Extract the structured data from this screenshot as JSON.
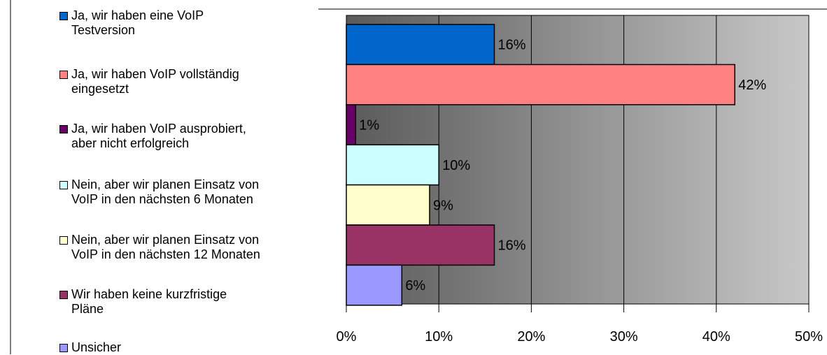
{
  "chart_data": {
    "type": "bar",
    "orientation": "horizontal",
    "categories": [
      "Ja, wir haben eine VoIP Testversion",
      "Ja, wir haben VoIP vollständig eingesetzt",
      "Ja, wir haben VoIP ausprobiert, aber nicht erfolgreich",
      "Nein, aber wir planen Einsatz von VoIP in den nächsten 6 Monaten",
      "Nein, aber wir planen Einsatz von VoIP in den nächsten 12 Monaten",
      "Wir haben keine kurzfristige Pläne",
      "Unsicher"
    ],
    "values": [
      16,
      42,
      1,
      10,
      9,
      16,
      6
    ],
    "value_labels": [
      "16%",
      "42%",
      "1%",
      "10%",
      "9%",
      "16%",
      "6%"
    ],
    "colors": [
      "#0066cc",
      "#ff8080",
      "#660066",
      "#ccffff",
      "#ffffcc",
      "#993366",
      "#9999ff"
    ],
    "xlim": [
      0,
      50
    ],
    "xticks": [
      {
        "value": 0,
        "label": "0%"
      },
      {
        "value": 10,
        "label": "10%"
      },
      {
        "value": 20,
        "label": "20%"
      },
      {
        "value": 30,
        "label": "30%"
      },
      {
        "value": 40,
        "label": "40%"
      },
      {
        "value": 50,
        "label": "50%"
      }
    ],
    "grid": true
  }
}
